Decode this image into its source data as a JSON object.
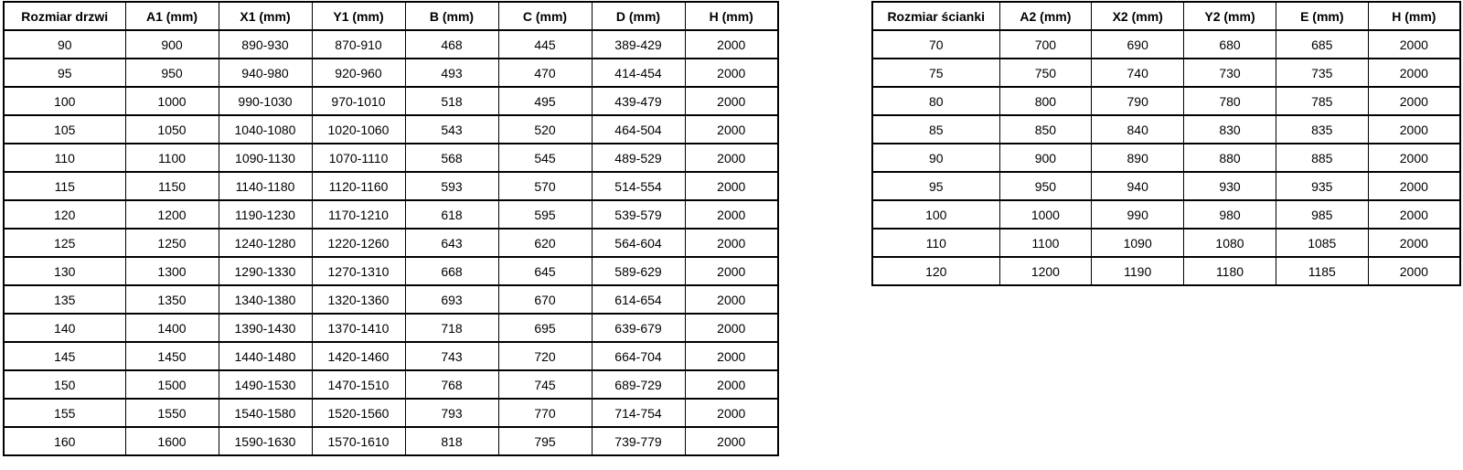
{
  "page": {
    "background_color": "#ffffff",
    "text_color": "#000000",
    "border_color": "#000000"
  },
  "door_table": {
    "headers": [
      "Rozmiar drzwi",
      "A1 (mm)",
      "X1 (mm)",
      "Y1 (mm)",
      "B (mm)",
      "C (mm)",
      "D (mm)",
      "H (mm)"
    ],
    "rows": [
      [
        "90",
        "900",
        "890-930",
        "870-910",
        "468",
        "445",
        "389-429",
        "2000"
      ],
      [
        "95",
        "950",
        "940-980",
        "920-960",
        "493",
        "470",
        "414-454",
        "2000"
      ],
      [
        "100",
        "1000",
        "990-1030",
        "970-1010",
        "518",
        "495",
        "439-479",
        "2000"
      ],
      [
        "105",
        "1050",
        "1040-1080",
        "1020-1060",
        "543",
        "520",
        "464-504",
        "2000"
      ],
      [
        "110",
        "1100",
        "1090-1130",
        "1070-1110",
        "568",
        "545",
        "489-529",
        "2000"
      ],
      [
        "115",
        "1150",
        "1140-1180",
        "1120-1160",
        "593",
        "570",
        "514-554",
        "2000"
      ],
      [
        "120",
        "1200",
        "1190-1230",
        "1170-1210",
        "618",
        "595",
        "539-579",
        "2000"
      ],
      [
        "125",
        "1250",
        "1240-1280",
        "1220-1260",
        "643",
        "620",
        "564-604",
        "2000"
      ],
      [
        "130",
        "1300",
        "1290-1330",
        "1270-1310",
        "668",
        "645",
        "589-629",
        "2000"
      ],
      [
        "135",
        "1350",
        "1340-1380",
        "1320-1360",
        "693",
        "670",
        "614-654",
        "2000"
      ],
      [
        "140",
        "1400",
        "1390-1430",
        "1370-1410",
        "718",
        "695",
        "639-679",
        "2000"
      ],
      [
        "145",
        "1450",
        "1440-1480",
        "1420-1460",
        "743",
        "720",
        "664-704",
        "2000"
      ],
      [
        "150",
        "1500",
        "1490-1530",
        "1470-1510",
        "768",
        "745",
        "689-729",
        "2000"
      ],
      [
        "155",
        "1550",
        "1540-1580",
        "1520-1560",
        "793",
        "770",
        "714-754",
        "2000"
      ],
      [
        "160",
        "1600",
        "1590-1630",
        "1570-1610",
        "818",
        "795",
        "739-779",
        "2000"
      ]
    ]
  },
  "wall_table": {
    "headers": [
      "Rozmiar ścianki",
      "A2 (mm)",
      "X2 (mm)",
      "Y2 (mm)",
      "E (mm)",
      "H (mm)"
    ],
    "rows": [
      [
        "70",
        "700",
        "690",
        "680",
        "685",
        "2000"
      ],
      [
        "75",
        "750",
        "740",
        "730",
        "735",
        "2000"
      ],
      [
        "80",
        "800",
        "790",
        "780",
        "785",
        "2000"
      ],
      [
        "85",
        "850",
        "840",
        "830",
        "835",
        "2000"
      ],
      [
        "90",
        "900",
        "890",
        "880",
        "885",
        "2000"
      ],
      [
        "95",
        "950",
        "940",
        "930",
        "935",
        "2000"
      ],
      [
        "100",
        "1000",
        "990",
        "980",
        "985",
        "2000"
      ],
      [
        "110",
        "1100",
        "1090",
        "1080",
        "1085",
        "2000"
      ],
      [
        "120",
        "1200",
        "1190",
        "1180",
        "1185",
        "2000"
      ]
    ]
  }
}
